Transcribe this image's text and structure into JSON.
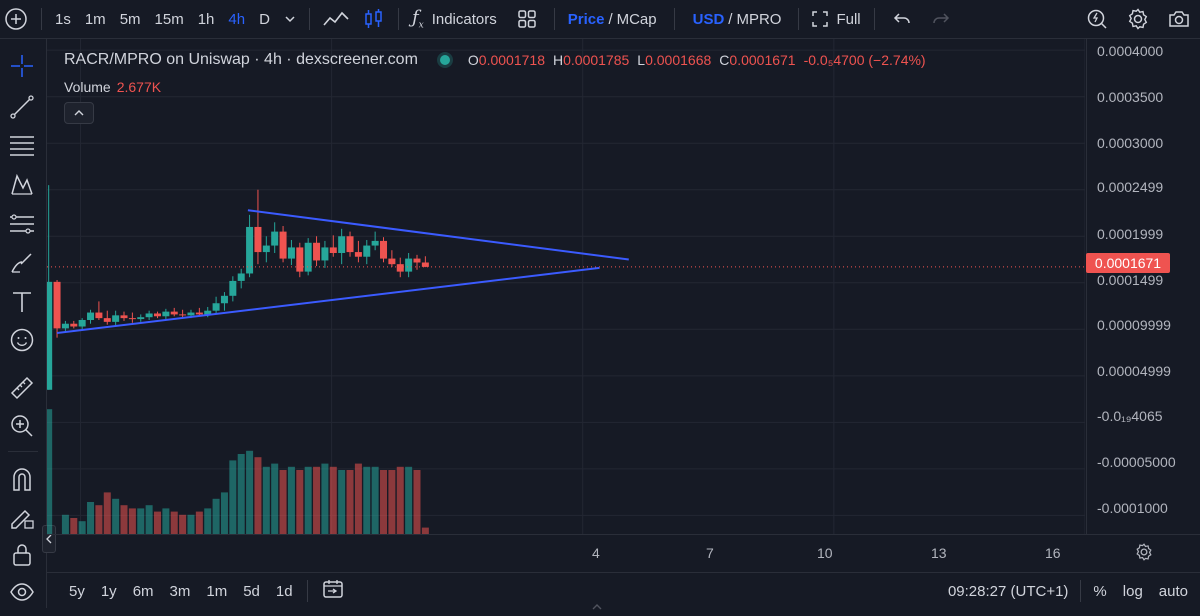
{
  "toolbar": {
    "intervals": [
      "1s",
      "1m",
      "5m",
      "15m",
      "1h",
      "4h",
      "D"
    ],
    "active_interval": "4h",
    "indicators_label": "Indicators",
    "price_label": "Price",
    "mcap_label": "MCap",
    "usd_label": "USD",
    "mpro_label": "MPRO",
    "full_label": "Full"
  },
  "legend": {
    "title": "RACR/MPRO on Uniswap · 4h · dexscreener.com",
    "o_key": "O",
    "o_val": "0.0001718",
    "h_key": "H",
    "h_val": "0.0001785",
    "l_key": "L",
    "l_val": "0.0001668",
    "c_key": "C",
    "c_val": "0.0001671",
    "change": "-0.0₅4700 (−2.74%)",
    "volume_label": "Volume",
    "volume_val": "2.677K"
  },
  "price_axis": {
    "labels": [
      "0.0004000",
      "0.0003500",
      "0.0003000",
      "0.0002499",
      "0.0001999",
      "0.0001499",
      "0.00009999",
      "0.00004999",
      "-0.0₁₉4065",
      "-0.00005000",
      "-0.0001000"
    ],
    "current_price": "0.0001671"
  },
  "time_axis": {
    "labels": [
      "4",
      "7",
      "10",
      "13",
      "16"
    ]
  },
  "bottombar": {
    "ranges": [
      "5y",
      "1y",
      "6m",
      "3m",
      "1m",
      "5d",
      "1d"
    ],
    "clock": "09:28:27 (UTC+1)",
    "percent_label": "%",
    "log_label": "log",
    "auto_label": "auto"
  },
  "colors": {
    "up": "#26A69A",
    "down": "#EF5350",
    "trendline": "#3B5BFF",
    "accent": "#2962FF"
  },
  "chart_data": {
    "type": "candlestick",
    "x_domain": [
      3.6,
      16
    ],
    "y_domain": [
      -0.00012,
      0.000412
    ],
    "candles": [
      {
        "t": 3.62,
        "o": 3.5e-05,
        "h": 0.000255,
        "l": 3.5e-05,
        "c": 0.000151
      },
      {
        "t": 3.72,
        "o": 0.000151,
        "h": 0.000153,
        "l": 9.1e-05,
        "c": 0.000101
      },
      {
        "t": 3.82,
        "o": 0.000101,
        "h": 0.000109,
        "l": 9.8e-05,
        "c": 0.000106
      },
      {
        "t": 3.92,
        "o": 0.000106,
        "h": 0.000109,
        "l": 0.000101,
        "c": 0.000103
      },
      {
        "t": 4.02,
        "o": 0.000103,
        "h": 0.000112,
        "l": 0.0001,
        "c": 0.00011
      },
      {
        "t": 4.12,
        "o": 0.00011,
        "h": 0.000121,
        "l": 0.000106,
        "c": 0.000118
      },
      {
        "t": 4.22,
        "o": 0.000118,
        "h": 0.00013,
        "l": 0.00011,
        "c": 0.000112
      },
      {
        "t": 4.32,
        "o": 0.000112,
        "h": 0.00012,
        "l": 0.000105,
        "c": 0.000108
      },
      {
        "t": 4.42,
        "o": 0.000108,
        "h": 0.00012,
        "l": 0.000104,
        "c": 0.000115
      },
      {
        "t": 4.52,
        "o": 0.000115,
        "h": 0.000119,
        "l": 0.000109,
        "c": 0.000112
      },
      {
        "t": 4.62,
        "o": 0.000112,
        "h": 0.000118,
        "l": 0.000107,
        "c": 0.000111
      },
      {
        "t": 4.72,
        "o": 0.000111,
        "h": 0.000116,
        "l": 0.000108,
        "c": 0.000113
      },
      {
        "t": 4.82,
        "o": 0.000113,
        "h": 0.00012,
        "l": 0.00011,
        "c": 0.000117
      },
      {
        "t": 4.92,
        "o": 0.000117,
        "h": 0.000119,
        "l": 0.000112,
        "c": 0.000114
      },
      {
        "t": 5.02,
        "o": 0.000114,
        "h": 0.000122,
        "l": 0.00011,
        "c": 0.000119
      },
      {
        "t": 5.12,
        "o": 0.000119,
        "h": 0.000123,
        "l": 0.000114,
        "c": 0.000116
      },
      {
        "t": 5.22,
        "o": 0.000116,
        "h": 0.000121,
        "l": 0.000112,
        "c": 0.000115
      },
      {
        "t": 5.32,
        "o": 0.000115,
        "h": 0.000121,
        "l": 0.000112,
        "c": 0.000118
      },
      {
        "t": 5.42,
        "o": 0.000118,
        "h": 0.000123,
        "l": 0.000114,
        "c": 0.000116
      },
      {
        "t": 5.52,
        "o": 0.000116,
        "h": 0.000124,
        "l": 0.000113,
        "c": 0.00012
      },
      {
        "t": 5.62,
        "o": 0.00012,
        "h": 0.000135,
        "l": 0.000117,
        "c": 0.000128
      },
      {
        "t": 5.72,
        "o": 0.000128,
        "h": 0.00014,
        "l": 0.00012,
        "c": 0.000136
      },
      {
        "t": 5.82,
        "o": 0.000136,
        "h": 0.000157,
        "l": 0.00013,
        "c": 0.000152
      },
      {
        "t": 5.92,
        "o": 0.000152,
        "h": 0.000165,
        "l": 0.000144,
        "c": 0.00016
      },
      {
        "t": 6.02,
        "o": 0.00016,
        "h": 0.000223,
        "l": 0.000156,
        "c": 0.00021
      },
      {
        "t": 6.12,
        "o": 0.00021,
        "h": 0.00025,
        "l": 0.00017,
        "c": 0.000183
      },
      {
        "t": 6.22,
        "o": 0.000183,
        "h": 0.0002,
        "l": 0.000172,
        "c": 0.00019
      },
      {
        "t": 6.32,
        "o": 0.00019,
        "h": 0.000215,
        "l": 0.000182,
        "c": 0.000205
      },
      {
        "t": 6.42,
        "o": 0.000205,
        "h": 0.000211,
        "l": 0.000172,
        "c": 0.000176
      },
      {
        "t": 6.52,
        "o": 0.000176,
        "h": 0.000196,
        "l": 0.000169,
        "c": 0.000188
      },
      {
        "t": 6.62,
        "o": 0.000188,
        "h": 0.000193,
        "l": 0.000156,
        "c": 0.000162
      },
      {
        "t": 6.72,
        "o": 0.000162,
        "h": 0.000198,
        "l": 0.000158,
        "c": 0.000193
      },
      {
        "t": 6.82,
        "o": 0.000193,
        "h": 0.0002,
        "l": 0.000168,
        "c": 0.000174
      },
      {
        "t": 6.92,
        "o": 0.000174,
        "h": 0.000195,
        "l": 0.000166,
        "c": 0.000188
      },
      {
        "t": 7.02,
        "o": 0.000188,
        "h": 0.000201,
        "l": 0.000178,
        "c": 0.000182
      },
      {
        "t": 7.12,
        "o": 0.000182,
        "h": 0.000208,
        "l": 0.00017,
        "c": 0.0002
      },
      {
        "t": 7.22,
        "o": 0.0002,
        "h": 0.000205,
        "l": 0.000178,
        "c": 0.000183
      },
      {
        "t": 7.32,
        "o": 0.000183,
        "h": 0.000195,
        "l": 0.000172,
        "c": 0.000178
      },
      {
        "t": 7.42,
        "o": 0.000178,
        "h": 0.000196,
        "l": 0.00017,
        "c": 0.00019
      },
      {
        "t": 7.52,
        "o": 0.00019,
        "h": 0.000205,
        "l": 0.000185,
        "c": 0.000195
      },
      {
        "t": 7.62,
        "o": 0.000195,
        "h": 0.000199,
        "l": 0.000172,
        "c": 0.000176
      },
      {
        "t": 7.72,
        "o": 0.000176,
        "h": 0.000185,
        "l": 0.000167,
        "c": 0.00017
      },
      {
        "t": 7.82,
        "o": 0.00017,
        "h": 0.000177,
        "l": 0.000156,
        "c": 0.000162
      },
      {
        "t": 7.92,
        "o": 0.000162,
        "h": 0.000182,
        "l": 0.000156,
        "c": 0.000176
      },
      {
        "t": 8.02,
        "o": 0.000176,
        "h": 0.00018,
        "l": 0.000164,
        "c": 0.0001718
      },
      {
        "t": 8.12,
        "o": 0.0001718,
        "h": 0.0001785,
        "l": 0.0001668,
        "c": 0.0001671
      }
    ],
    "volume": [
      78,
      0,
      12,
      10,
      8,
      20,
      18,
      26,
      22,
      18,
      16,
      16,
      18,
      14,
      16,
      14,
      12,
      12,
      14,
      16,
      22,
      26,
      46,
      50,
      52,
      48,
      42,
      44,
      40,
      42,
      40,
      42,
      42,
      44,
      42,
      40,
      40,
      44,
      42,
      42,
      40,
      40,
      42,
      42,
      40,
      4
    ],
    "volume_scale_max": 100,
    "trendlines": [
      {
        "name": "upper",
        "from": {
          "t": 6.0,
          "price": 0.000228
        },
        "to": {
          "t": 10.55,
          "price": 0.000175
        }
      },
      {
        "name": "lower",
        "from": {
          "t": 3.72,
          "price": 9.6e-05
        },
        "to": {
          "t": 10.2,
          "price": 0.000166
        }
      }
    ],
    "current_price_value": 0.0001671
  }
}
